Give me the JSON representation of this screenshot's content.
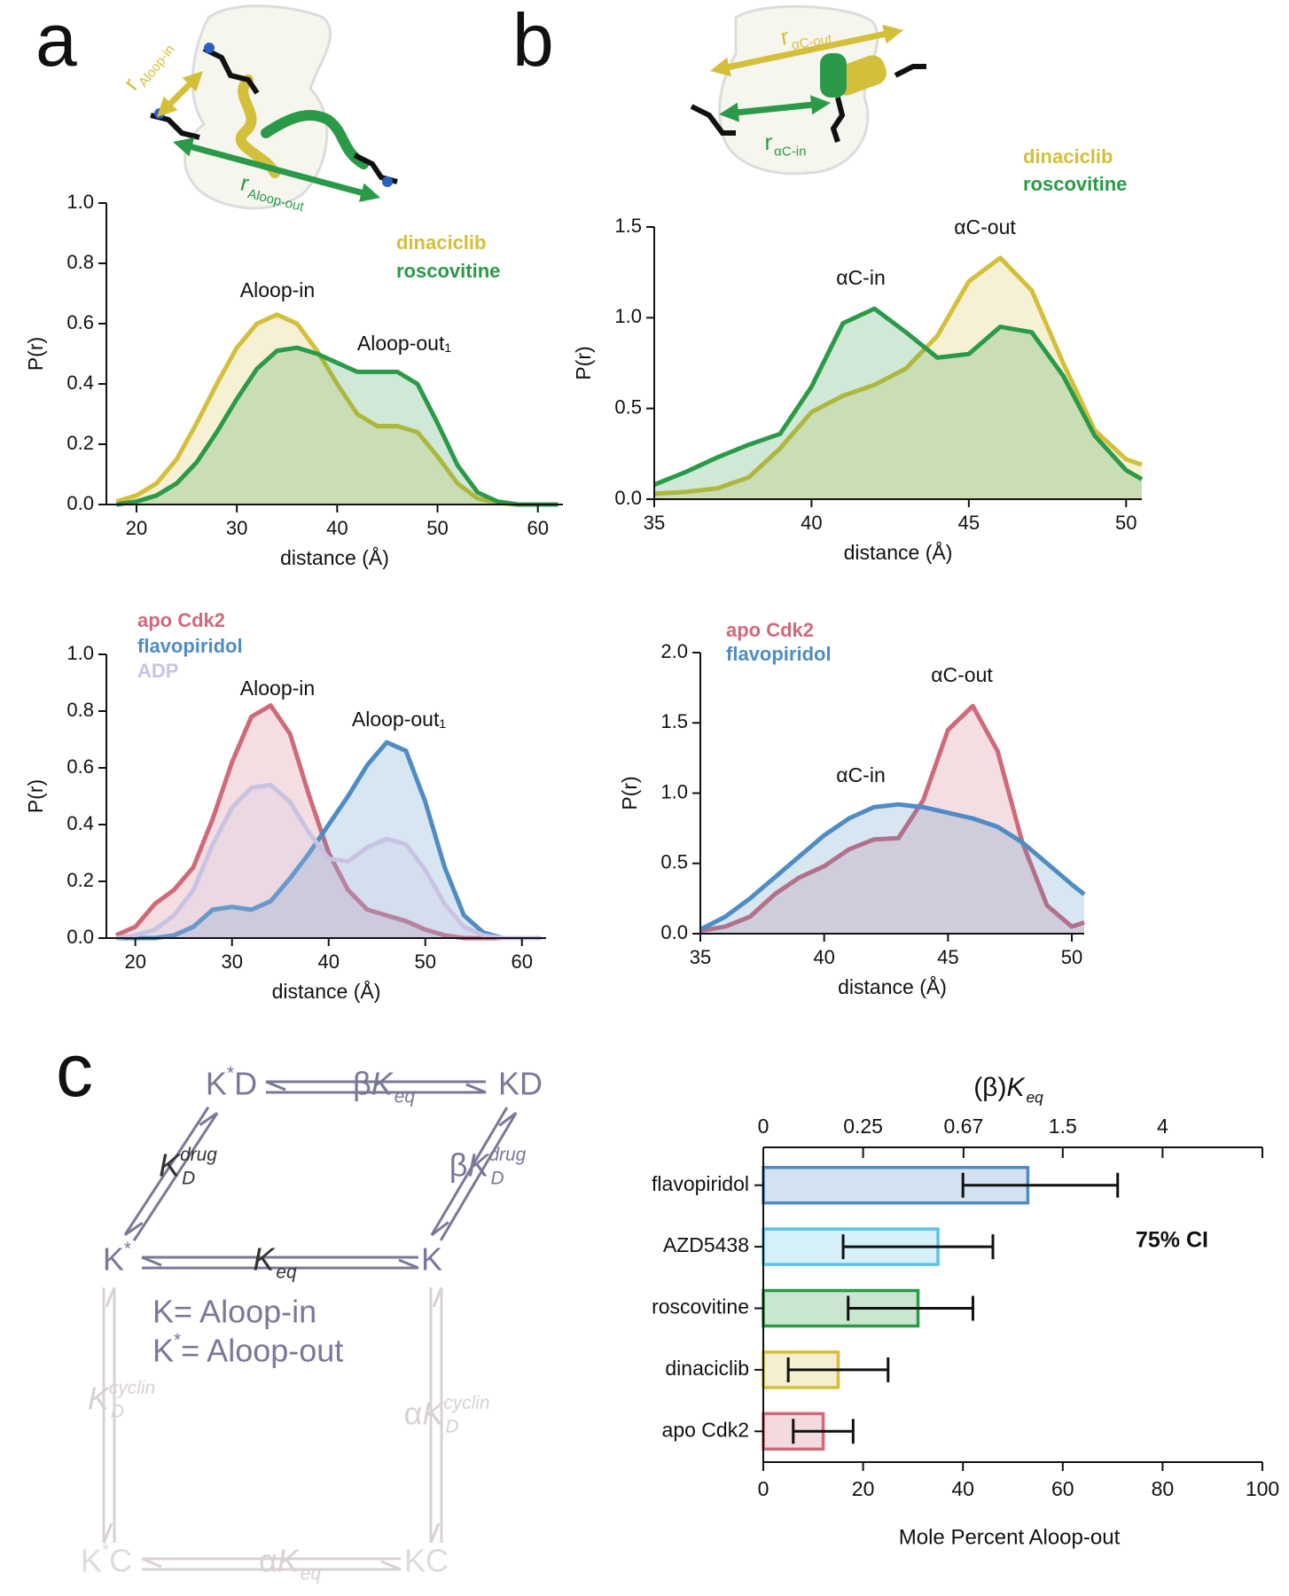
{
  "panel_labels": [
    "a",
    "b",
    "c"
  ],
  "chart_data": [
    {
      "type": "line",
      "xlabel": "distance (Å)",
      "ylabel": "P(r)",
      "x": [
        18,
        20,
        22,
        24,
        26,
        28,
        30,
        32,
        34,
        36,
        38,
        40,
        42,
        44,
        46,
        48,
        50,
        52,
        54,
        56,
        58,
        60,
        62
      ],
      "xlim": [
        17,
        62.5
      ],
      "xticks": [
        20,
        30,
        40,
        50,
        60
      ],
      "ylim": [
        0,
        1
      ],
      "yticks": [
        {
          "value": 0,
          "label": "0.0"
        },
        0.2,
        0.4,
        0.6,
        0.8,
        {
          "value": 1,
          "label": "1.0"
        }
      ],
      "annotations": [
        "Aloop-in",
        "Aloop-out₁"
      ],
      "series": [
        {
          "name": "dinaciclib",
          "color": "#d4bf3a",
          "values": [
            0.01,
            0.03,
            0.07,
            0.15,
            0.27,
            0.4,
            0.52,
            0.6,
            0.63,
            0.6,
            0.51,
            0.4,
            0.3,
            0.26,
            0.26,
            0.24,
            0.16,
            0.07,
            0.02,
            0.005,
            0,
            0,
            0
          ]
        },
        {
          "name": "roscovitine",
          "color": "#2a9a48",
          "values": [
            0,
            0.01,
            0.03,
            0.07,
            0.14,
            0.24,
            0.35,
            0.45,
            0.51,
            0.52,
            0.5,
            0.47,
            0.44,
            0.44,
            0.44,
            0.4,
            0.27,
            0.13,
            0.04,
            0.01,
            0,
            0,
            0
          ]
        }
      ]
    },
    {
      "type": "line",
      "xlabel": "distance (Å)",
      "ylabel": "P(r)",
      "x": [
        35,
        36,
        37,
        38,
        39,
        40,
        41,
        42,
        43,
        44,
        45,
        46,
        47,
        48,
        49,
        50,
        50.5
      ],
      "xlim": [
        35,
        50.5
      ],
      "xticks": [
        35,
        40,
        45,
        50
      ],
      "ylim": [
        0,
        1.5
      ],
      "yticks": [
        {
          "value": 0,
          "label": "0.0"
        },
        0.5,
        {
          "value": 1,
          "label": "1.0"
        },
        1.5
      ],
      "annotations": [
        "αC-in",
        "αC-out"
      ],
      "series": [
        {
          "name": "dinaciclib",
          "color": "#d4bf3a",
          "values": [
            0.03,
            0.04,
            0.06,
            0.12,
            0.28,
            0.48,
            0.57,
            0.63,
            0.72,
            0.9,
            1.2,
            1.33,
            1.15,
            0.75,
            0.38,
            0.22,
            0.19
          ]
        },
        {
          "name": "roscovitine",
          "color": "#2a9a48",
          "values": [
            0.08,
            0.15,
            0.23,
            0.3,
            0.36,
            0.62,
            0.97,
            1.05,
            0.92,
            0.78,
            0.8,
            0.95,
            0.92,
            0.68,
            0.35,
            0.16,
            0.11
          ]
        }
      ]
    },
    {
      "type": "line",
      "xlabel": "distance (Å)",
      "ylabel": "P(r)",
      "x": [
        18,
        20,
        22,
        24,
        26,
        28,
        30,
        32,
        34,
        36,
        38,
        40,
        42,
        44,
        46,
        48,
        50,
        52,
        54,
        56,
        58,
        60,
        62
      ],
      "xlim": [
        17,
        62.5
      ],
      "xticks": [
        20,
        30,
        40,
        50,
        60
      ],
      "ylim": [
        0,
        1
      ],
      "yticks": [
        {
          "value": 0,
          "label": "0.0"
        },
        0.2,
        0.4,
        0.6,
        0.8,
        {
          "value": 1,
          "label": "1.0"
        }
      ],
      "annotations": [
        "Aloop-in",
        "Aloop-out₁"
      ],
      "series": [
        {
          "name": "apo Cdk2",
          "color": "#cf6a7b",
          "values": [
            0.01,
            0.04,
            0.12,
            0.17,
            0.25,
            0.42,
            0.62,
            0.78,
            0.82,
            0.72,
            0.5,
            0.3,
            0.17,
            0.1,
            0.08,
            0.06,
            0.03,
            0.01,
            0,
            0,
            0,
            0,
            0
          ]
        },
        {
          "name": "flavopiridol",
          "color": "#4f8cc4",
          "values": [
            0,
            0,
            0,
            0.01,
            0.04,
            0.1,
            0.11,
            0.1,
            0.13,
            0.21,
            0.3,
            0.4,
            0.5,
            0.61,
            0.69,
            0.66,
            0.48,
            0.25,
            0.08,
            0.02,
            0,
            0,
            0
          ]
        },
        {
          "name": "ADP",
          "color": "#c9c3e3",
          "values": [
            0,
            0.01,
            0.03,
            0.08,
            0.17,
            0.33,
            0.46,
            0.53,
            0.54,
            0.48,
            0.37,
            0.28,
            0.27,
            0.32,
            0.35,
            0.33,
            0.24,
            0.12,
            0.04,
            0.01,
            0,
            0,
            0
          ]
        }
      ]
    },
    {
      "type": "line",
      "xlabel": "distance (Å)",
      "ylabel": "P(r)",
      "x": [
        35,
        36,
        37,
        38,
        39,
        40,
        41,
        42,
        43,
        44,
        45,
        46,
        47,
        48,
        49,
        50,
        50.5
      ],
      "xlim": [
        35,
        50.5
      ],
      "xticks": [
        35,
        40,
        45,
        50
      ],
      "ylim": [
        0,
        2
      ],
      "yticks": [
        {
          "value": 0,
          "label": "0.0"
        },
        0.5,
        {
          "value": 1,
          "label": "1.0"
        },
        1.5,
        {
          "value": 2,
          "label": "2.0"
        }
      ],
      "annotations": [
        "αC-out",
        "αC-in"
      ],
      "series": [
        {
          "name": "apo Cdk2",
          "color": "#cf6a7b",
          "values": [
            0.02,
            0.05,
            0.12,
            0.28,
            0.4,
            0.48,
            0.6,
            0.67,
            0.68,
            0.95,
            1.45,
            1.62,
            1.3,
            0.65,
            0.2,
            0.05,
            0.08
          ]
        },
        {
          "name": "flavopiridol",
          "color": "#4f8cc4",
          "values": [
            0.03,
            0.12,
            0.25,
            0.4,
            0.55,
            0.7,
            0.82,
            0.9,
            0.92,
            0.9,
            0.86,
            0.82,
            0.76,
            0.65,
            0.5,
            0.35,
            0.28
          ]
        }
      ]
    },
    {
      "type": "hbar",
      "xlabel": "Mole Percent Aloop-out",
      "x2label": {
        "pre": "(β)",
        "text": "K",
        "sub": "eq",
        "italic": true
      },
      "categories": [
        "flavopiridol",
        "AZD5438",
        "roscovitine",
        "dinaciclib",
        "apo Cdk2"
      ],
      "values": [
        53,
        35,
        31,
        15,
        12
      ],
      "ci_low": [
        40,
        16,
        17,
        5,
        6
      ],
      "ci_high": [
        71,
        46,
        42,
        25,
        18
      ],
      "colors": [
        "#4f8cc4",
        "#5cc3ea",
        "#2a9a48",
        "#d4bf3a",
        "#cf6a7b"
      ],
      "xlim": [
        0,
        100
      ],
      "xticks": [
        0,
        20,
        40,
        60,
        80,
        100
      ],
      "x2ticks": [
        0,
        0.25,
        0.67,
        1.5,
        4
      ],
      "annotation": "75% CI"
    }
  ],
  "cartoons": {
    "r_aloop_in": {
      "text": "r",
      "sub": "Aloop-in"
    },
    "r_aloop_out": {
      "text": "r",
      "sub": "Aloop-out"
    },
    "r_ac_out": {
      "text": "r",
      "sub": "αC-out"
    },
    "r_ac_in": {
      "text": "r",
      "sub": "αC-in"
    }
  },
  "scheme": {
    "nodes": [
      {
        "text": "K",
        "sup": "*",
        "post": "D"
      },
      {
        "text": "KD"
      },
      {
        "text": "K",
        "sup": "*"
      },
      {
        "text": "K"
      },
      {
        "text": "K",
        "sup": "*",
        "post": "C"
      },
      {
        "text": "KC"
      }
    ],
    "edges": [
      {
        "pre": "β",
        "text": "K",
        "sub": "eq",
        "italic": true
      },
      {
        "text": "K",
        "sub": "D",
        "sup": "drug",
        "italic": true
      },
      {
        "pre": "β",
        "text": "K",
        "sub": "D",
        "sup": "drug",
        "italic": true
      },
      {
        "text": "K",
        "sub": "eq",
        "italic": true
      },
      {
        "text": "K",
        "sub": "D",
        "sup": "cyclin",
        "italic": true
      },
      {
        "pre": "α",
        "text": "K",
        "sub": "D",
        "sup": "cyclin",
        "italic": true
      },
      {
        "pre": "α",
        "text": "K",
        "sub": "eq",
        "italic": true
      }
    ],
    "definitions": [
      {
        "text": "K",
        "post": " = Aloop-in"
      },
      {
        "text": "K",
        "sup": "*",
        "post": " = Aloop-out"
      }
    ]
  }
}
